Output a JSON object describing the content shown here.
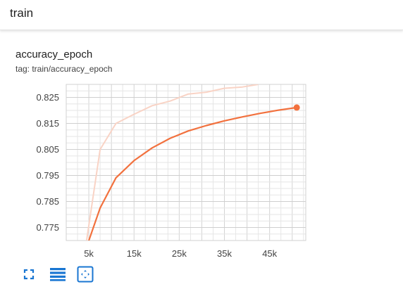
{
  "section": {
    "title": "train"
  },
  "card": {
    "title": "accuracy_epoch",
    "tag": "tag: train/accuracy_epoch"
  },
  "toolbar": {
    "icons": [
      "fullscreen-icon",
      "toggle-log-scale-icon",
      "fit-domain-icon"
    ],
    "accent_color": "#1976d2"
  },
  "chart_data": {
    "type": "line",
    "title": "accuracy_epoch",
    "xlabel": "",
    "ylabel": "",
    "x_ticks": [
      5000,
      15000,
      25000,
      35000,
      45000
    ],
    "x_tick_labels": [
      "5k",
      "15k",
      "25k",
      "35k",
      "45k"
    ],
    "y_ticks": [
      0.775,
      0.785,
      0.795,
      0.805,
      0.815,
      0.825
    ],
    "y_tick_labels": [
      "0.775",
      "0.785",
      "0.795",
      "0.805",
      "0.815",
      "0.825"
    ],
    "xlim": [
      0,
      53000
    ],
    "ylim": [
      0.77,
      0.83
    ],
    "grid": true,
    "series": [
      {
        "role": "raw",
        "color": "#f9d3c5",
        "x": [
          4500,
          7500,
          11000,
          15000,
          19000,
          23000,
          27000,
          31000,
          35000,
          39000,
          42500
        ],
        "y": [
          0.77,
          0.805,
          0.815,
          0.8185,
          0.8218,
          0.8236,
          0.8263,
          0.827,
          0.8285,
          0.829,
          0.83
        ]
      },
      {
        "role": "smoothed",
        "color": "#f2713e",
        "x": [
          5000,
          7500,
          11000,
          15000,
          19000,
          23000,
          27000,
          31000,
          35000,
          39000,
          43000,
          47000,
          51000
        ],
        "y": [
          0.77,
          0.7825,
          0.7941,
          0.8007,
          0.8056,
          0.8093,
          0.8121,
          0.8142,
          0.816,
          0.8175,
          0.8189,
          0.8201,
          0.8211
        ],
        "last_point_marker": true
      }
    ]
  }
}
